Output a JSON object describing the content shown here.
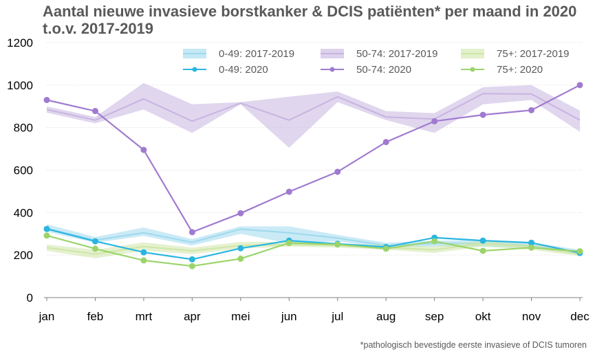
{
  "title": "Aantal nieuwe invasieve borstkanker & DCIS patiënten* per maand in 2020 t.o.v. 2017-2019",
  "footnote": "*pathologisch bevestigde eerste invasieve of DCIS tumoren",
  "chart_data": {
    "type": "line",
    "categories": [
      "jan",
      "feb",
      "mrt",
      "apr",
      "mei",
      "jun",
      "jul",
      "aug",
      "sep",
      "okt",
      "nov",
      "dec"
    ],
    "ylim": [
      0,
      1200
    ],
    "yticks": [
      "0",
      "200",
      "400",
      "600",
      "800",
      "1000",
      "1200"
    ],
    "grid": true,
    "legend": "top-right",
    "bands": [
      {
        "name": "0-49: 2017-2019",
        "color": "#9ed9ee",
        "mid": [
          325,
          270,
          305,
          260,
          322,
          305,
          280,
          245,
          255,
          255,
          245,
          215
        ],
        "lower": [
          310,
          258,
          290,
          245,
          300,
          255,
          265,
          235,
          240,
          240,
          232,
          205
        ],
        "upper": [
          345,
          285,
          330,
          275,
          335,
          335,
          295,
          258,
          268,
          270,
          260,
          225
        ]
      },
      {
        "name": "50-74: 2017-2019",
        "color": "#c7b4e0",
        "mid": [
          885,
          835,
          935,
          830,
          915,
          835,
          945,
          850,
          840,
          960,
          958,
          835
        ],
        "lower": [
          870,
          820,
          885,
          775,
          910,
          705,
          920,
          835,
          775,
          910,
          930,
          780
        ],
        "upper": [
          900,
          850,
          1010,
          910,
          920,
          945,
          970,
          878,
          868,
          990,
          1000,
          880
        ]
      },
      {
        "name": "75+: 2017-2019",
        "color": "#cfe6a8",
        "mid": [
          235,
          205,
          240,
          220,
          245,
          250,
          245,
          235,
          225,
          255,
          238,
          205
        ],
        "lower": [
          220,
          185,
          220,
          205,
          230,
          240,
          235,
          225,
          210,
          240,
          225,
          195
        ],
        "upper": [
          250,
          225,
          260,
          235,
          262,
          262,
          255,
          248,
          242,
          268,
          250,
          218
        ]
      }
    ],
    "series": [
      {
        "name": "0-49: 2020",
        "color": "#29b5e1",
        "values": [
          323,
          265,
          213,
          180,
          232,
          268,
          253,
          238,
          282,
          268,
          258,
          210
        ]
      },
      {
        "name": "50-74: 2020",
        "color": "#a07ad0",
        "values": [
          930,
          878,
          695,
          308,
          397,
          498,
          592,
          732,
          830,
          860,
          882,
          1000
        ]
      },
      {
        "name": "75+: 2020",
        "color": "#9bd46a",
        "values": [
          292,
          230,
          175,
          148,
          183,
          257,
          250,
          230,
          265,
          220,
          235,
          218
        ]
      }
    ]
  }
}
